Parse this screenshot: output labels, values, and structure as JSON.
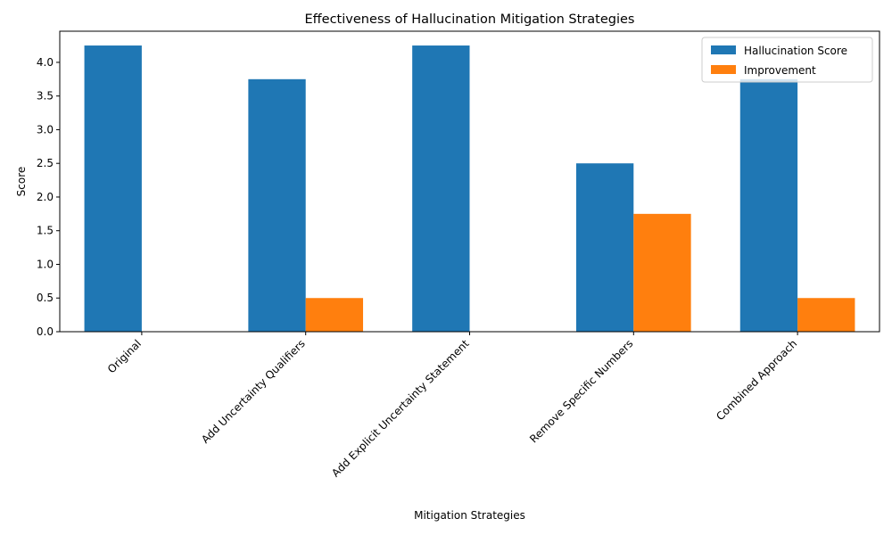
{
  "chart_data": {
    "type": "bar",
    "title": "Effectiveness of Hallucination Mitigation Strategies",
    "xlabel": "Mitigation Strategies",
    "ylabel": "Score",
    "categories": [
      "Original",
      "Add Uncertainty Qualifiers",
      "Add Explicit Uncertainty Statement",
      "Remove Specific Numbers",
      "Combined Approach"
    ],
    "series": [
      {
        "name": "Hallucination Score",
        "values": [
          4.25,
          3.75,
          4.25,
          2.5,
          3.75
        ],
        "color": "#1f77b4"
      },
      {
        "name": "Improvement",
        "values": [
          0,
          0.5,
          0,
          1.75,
          0.5
        ],
        "color": "#ff7f0e"
      }
    ],
    "ylim": [
      0,
      4.4625
    ],
    "yticks": [
      0.0,
      0.5,
      1.0,
      1.5,
      2.0,
      2.5,
      3.0,
      3.5,
      4.0
    ],
    "ytick_labels": [
      "0.0",
      "0.5",
      "1.0",
      "1.5",
      "2.0",
      "2.5",
      "3.0",
      "3.5",
      "4.0"
    ],
    "legend_position": "top-right",
    "grid": false
  }
}
